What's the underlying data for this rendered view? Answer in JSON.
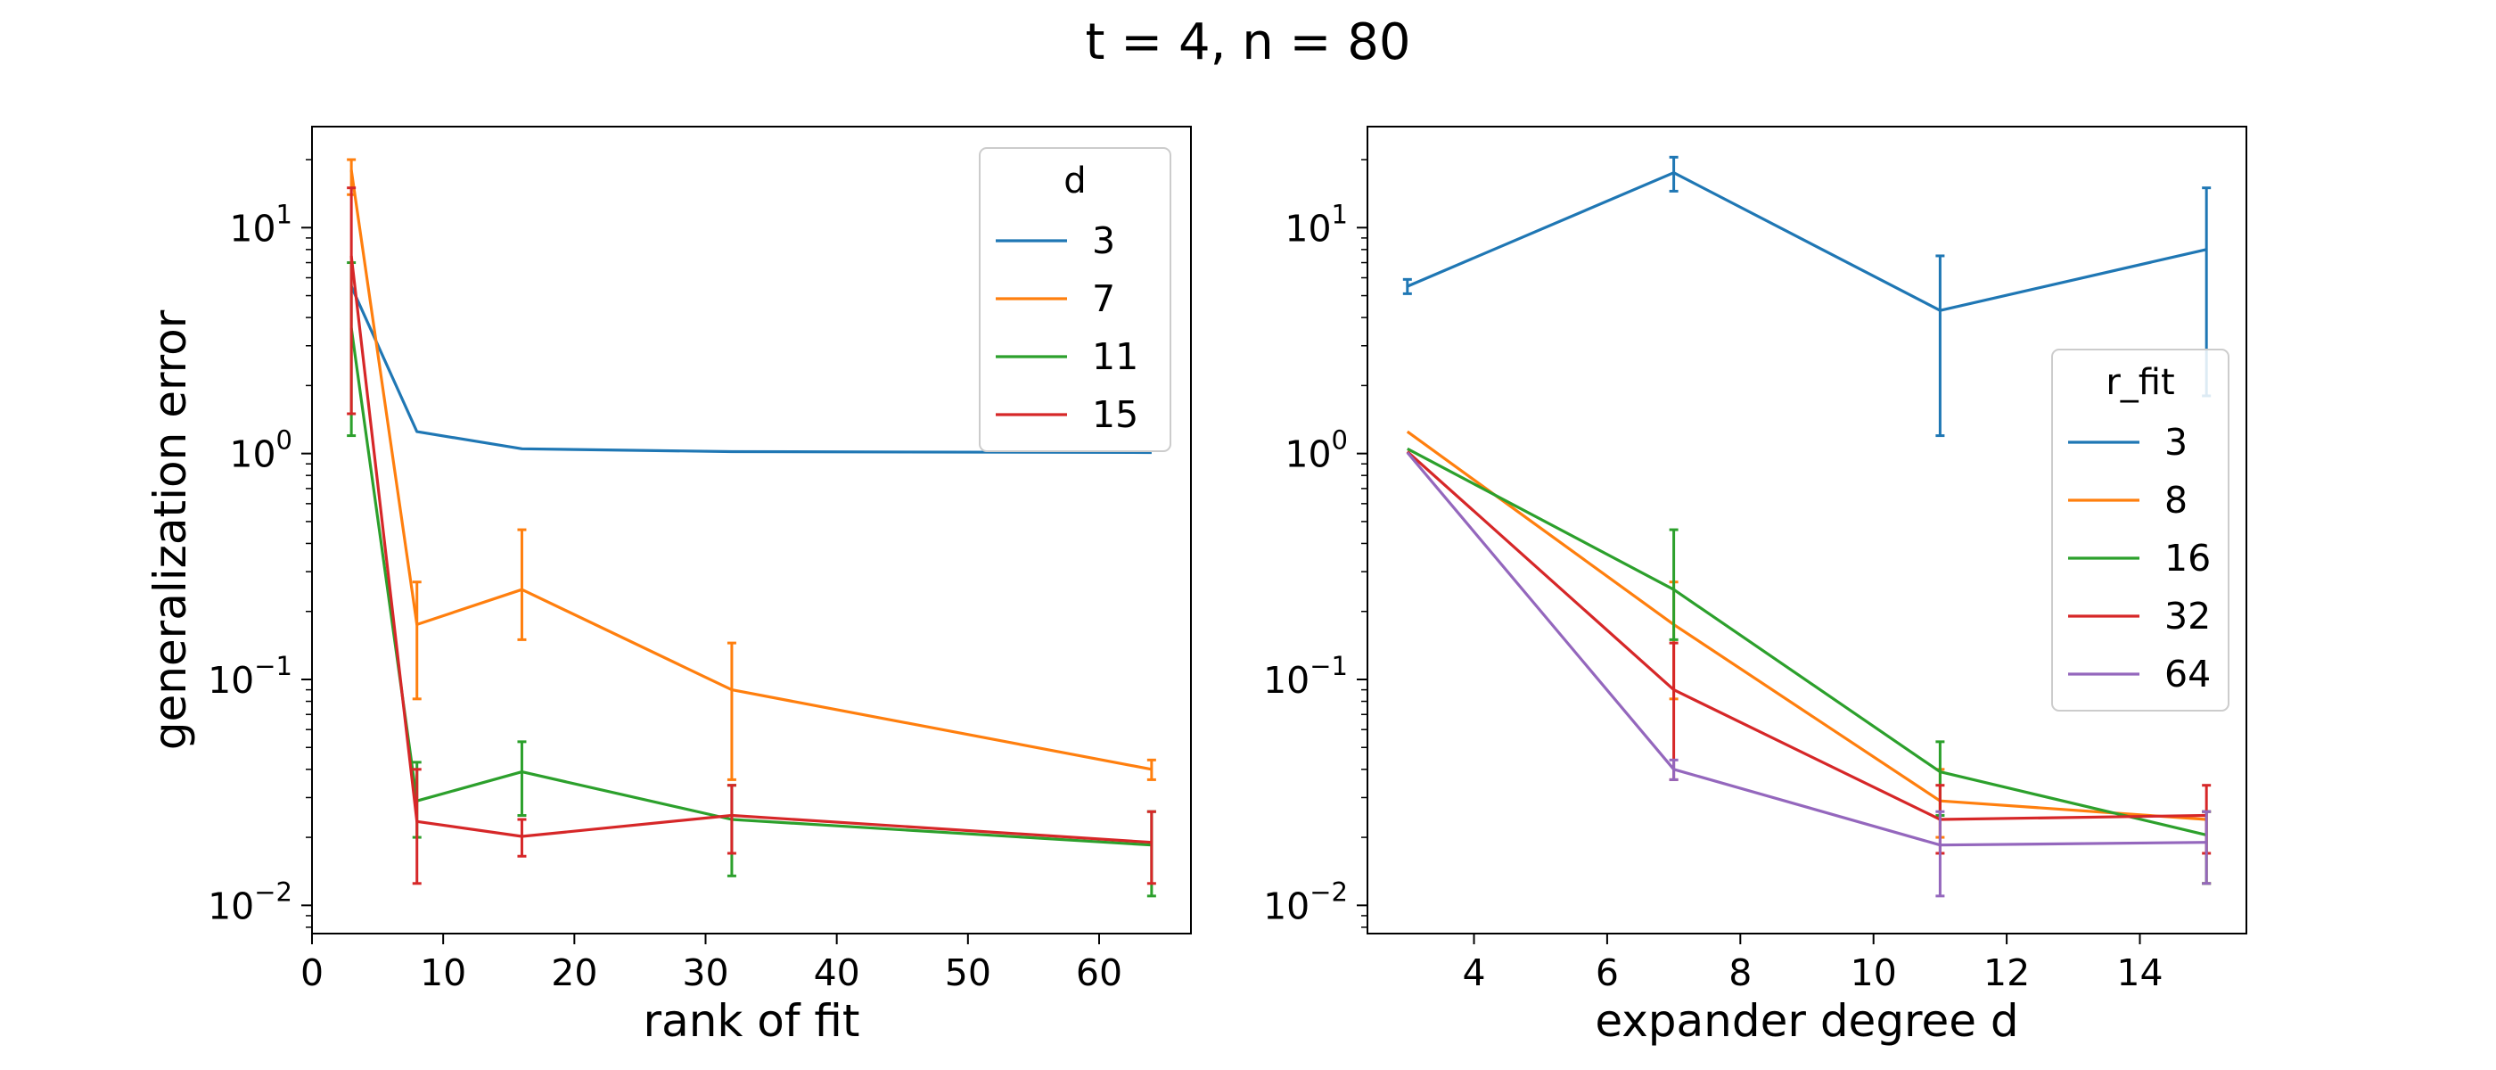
{
  "figure": {
    "title": "t = 4, n = 80"
  },
  "chart_data": [
    {
      "type": "line",
      "error_bars": true,
      "xlabel": "rank of fit",
      "ylabel": "generalization error",
      "xlim": [
        0,
        67
      ],
      "ylim": [
        0.0075,
        28
      ],
      "yscale": "log",
      "xticks": [
        "0",
        "10",
        "20",
        "30",
        "40",
        "50",
        "60"
      ],
      "xtick_values": [
        0,
        10,
        20,
        30,
        40,
        50,
        60
      ],
      "yticks": [
        {
          "base": "10",
          "exp": "−2"
        },
        {
          "base": "10",
          "exp": "−1"
        },
        {
          "base": "10",
          "exp": "0"
        },
        {
          "base": "10",
          "exp": "1"
        }
      ],
      "ytick_values": [
        0.01,
        0.1,
        1,
        10
      ],
      "legend": {
        "title": "d",
        "position": "upper right"
      },
      "x": [
        3,
        8,
        16,
        32,
        64
      ],
      "series": [
        {
          "name": "3",
          "color": "#1f77b4",
          "values": [
            5.5,
            1.25,
            1.05,
            1.02,
            1.01
          ],
          "err_low": [
            null,
            null,
            null,
            null,
            null
          ],
          "err_high": [
            null,
            null,
            null,
            null,
            null
          ]
        },
        {
          "name": "7",
          "color": "#ff7f0e",
          "values": [
            18.0,
            0.175,
            0.25,
            0.09,
            0.04
          ],
          "err_low": [
            14.0,
            0.082,
            0.15,
            0.036,
            0.036
          ],
          "err_high": [
            20.0,
            0.27,
            0.46,
            0.145,
            0.044
          ]
        },
        {
          "name": "11",
          "color": "#2ca02c",
          "values": [
            3.6,
            0.029,
            0.039,
            0.024,
            0.0185
          ],
          "err_low": [
            1.2,
            0.02,
            0.025,
            0.0135,
            0.011
          ],
          "err_high": [
            7.0,
            0.043,
            0.053,
            0.034,
            0.026
          ]
        },
        {
          "name": "15",
          "color": "#d62728",
          "values": [
            7.5,
            0.0235,
            0.0202,
            0.025,
            0.019
          ],
          "err_low": [
            1.5,
            0.0125,
            0.0165,
            0.017,
            0.0125
          ],
          "err_high": [
            15.0,
            0.04,
            0.024,
            0.034,
            0.026
          ]
        }
      ]
    },
    {
      "type": "line",
      "error_bars": true,
      "xlabel": "expander degree d",
      "ylabel": "",
      "xlim": [
        2.4,
        15.6
      ],
      "ylim": [
        0.0075,
        28
      ],
      "yscale": "log",
      "xticks": [
        "4",
        "6",
        "8",
        "10",
        "12",
        "14"
      ],
      "xtick_values": [
        4,
        6,
        8,
        10,
        12,
        14
      ],
      "yticks": [
        {
          "base": "10",
          "exp": "−2"
        },
        {
          "base": "10",
          "exp": "−1"
        },
        {
          "base": "10",
          "exp": "0"
        },
        {
          "base": "10",
          "exp": "1"
        }
      ],
      "ytick_values": [
        0.01,
        0.1,
        1,
        10
      ],
      "legend": {
        "title": "r_fit",
        "position": "center right"
      },
      "x": [
        3,
        7,
        11,
        15
      ],
      "series": [
        {
          "name": "3",
          "color": "#1f77b4",
          "values": [
            5.5,
            17.5,
            4.3,
            8.0
          ],
          "err_low": [
            5.1,
            14.5,
            1.2,
            1.8
          ],
          "err_high": [
            5.9,
            20.5,
            7.5,
            15.0
          ]
        },
        {
          "name": "8",
          "color": "#ff7f0e",
          "values": [
            1.25,
            0.175,
            0.029,
            0.024
          ],
          "err_low": [
            null,
            0.082,
            0.02,
            0.0125
          ],
          "err_high": [
            null,
            0.27,
            0.04,
            0.026
          ]
        },
        {
          "name": "16",
          "color": "#2ca02c",
          "values": [
            1.05,
            0.25,
            0.039,
            0.0205
          ],
          "err_low": [
            null,
            0.15,
            0.025,
            0.0125
          ],
          "err_high": [
            null,
            0.46,
            0.053,
            0.026
          ]
        },
        {
          "name": "32",
          "color": "#d62728",
          "values": [
            1.02,
            0.09,
            0.024,
            0.025
          ],
          "err_low": [
            null,
            0.036,
            0.017,
            0.017
          ],
          "err_high": [
            null,
            0.145,
            0.034,
            0.034
          ]
        },
        {
          "name": "64",
          "color": "#9467bd",
          "values": [
            1.01,
            0.04,
            0.0185,
            0.019
          ],
          "err_low": [
            null,
            0.036,
            0.011,
            0.0125
          ],
          "err_high": [
            null,
            0.044,
            0.026,
            0.026
          ]
        }
      ]
    }
  ]
}
